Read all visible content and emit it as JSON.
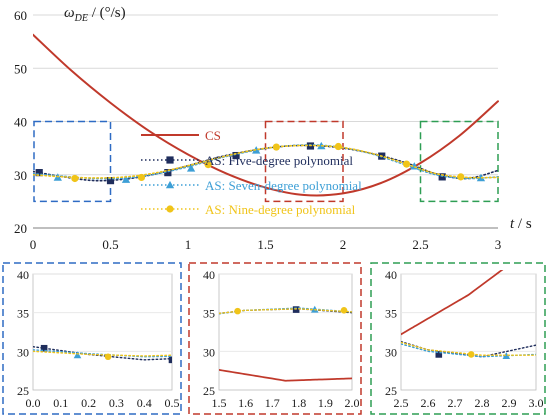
{
  "chart_data": {
    "type": "line",
    "main": {
      "ylabel": "ωDE / (°/s)",
      "ylabel_main": "ω",
      "ylabel_sub": "DE",
      "ylabel_unit": " / (°/s)",
      "xlabel": "t / s",
      "xlabel_var": "t",
      "xlabel_unit": " / s",
      "xlim": [
        0,
        3
      ],
      "ylim": [
        20,
        60
      ],
      "xticks": [
        "0",
        "0.5",
        "1",
        "1.5",
        "2",
        "2.5",
        "3"
      ],
      "yticks": [
        "20",
        "30",
        "40",
        "50",
        "60"
      ],
      "xtick_values": [
        0,
        0.5,
        1,
        1.5,
        2,
        2.5,
        3
      ],
      "ytick_values": [
        20,
        30,
        40,
        50,
        60
      ],
      "series": [
        {
          "name": "CS",
          "style": "solid",
          "color": "#c0392b",
          "x": [
            0,
            0.25,
            0.5,
            0.75,
            1.0,
            1.25,
            1.5,
            1.75,
            2.0,
            2.25,
            2.5,
            2.75,
            3.0
          ],
          "y": [
            56.3,
            49.5,
            43.5,
            38.2,
            33.8,
            30.2,
            27.6,
            26.2,
            26.5,
            28.5,
            32.2,
            37.3,
            43.8
          ]
        },
        {
          "name": "AS: Five-degree polynomial",
          "style": "dotted",
          "color": "#1f2d5c",
          "marker": "square",
          "x": [
            0,
            0.2,
            0.4,
            0.6,
            0.8,
            1.0,
            1.2,
            1.4,
            1.6,
            1.8,
            2.0,
            2.2,
            2.4,
            2.6,
            2.8,
            3.0
          ],
          "y": [
            30.6,
            29.6,
            28.9,
            29.2,
            30.2,
            31.7,
            33.3,
            34.5,
            35.3,
            35.5,
            35.0,
            33.9,
            32.3,
            30.2,
            29.3,
            30.8
          ],
          "mx": [
            0.04,
            0.5,
            0.87,
            1.31,
            1.79,
            2.25,
            2.64
          ],
          "my": [
            30.4,
            28.9,
            30.4,
            33.6,
            35.4,
            33.5,
            29.6
          ]
        },
        {
          "name": "AS: Seven-degree polynomial",
          "style": "dotted",
          "color": "#3d9fd6",
          "marker": "triangle",
          "x": [
            0,
            0.2,
            0.4,
            0.6,
            0.8,
            1.0,
            1.2,
            1.4,
            1.6,
            1.8,
            2.0,
            2.2,
            2.4,
            2.6,
            2.8,
            3.0
          ],
          "y": [
            30.2,
            29.7,
            29.3,
            29.4,
            30.2,
            31.5,
            33.1,
            34.4,
            35.3,
            35.6,
            35.1,
            33.8,
            31.9,
            30.0,
            29.3,
            29.6
          ],
          "mx": [
            0.16,
            0.6,
            1.02,
            1.44,
            1.86,
            2.46,
            2.89
          ],
          "my": [
            29.5,
            29.1,
            31.2,
            34.6,
            35.4,
            31.6,
            29.4
          ]
        },
        {
          "name": "AS: Nine-degree polynomial",
          "style": "dotted",
          "color": "#f0c419",
          "marker": "circle",
          "x": [
            0,
            0.2,
            0.4,
            0.6,
            0.8,
            1.0,
            1.2,
            1.4,
            1.6,
            1.8,
            2.0,
            2.2,
            2.4,
            2.6,
            2.8,
            3.0
          ],
          "y": [
            30.0,
            29.6,
            29.4,
            29.6,
            30.4,
            31.7,
            33.2,
            34.5,
            35.3,
            35.5,
            35.1,
            33.9,
            32.1,
            30.2,
            29.5,
            29.5
          ],
          "mx": [
            0.27,
            0.7,
            1.13,
            1.57,
            1.97,
            2.41,
            2.76
          ],
          "my": [
            29.3,
            29.5,
            31.9,
            35.2,
            35.3,
            32.0,
            29.6
          ]
        }
      ],
      "zoom_boxes": [
        {
          "color": "#2e6bc4",
          "xlim": [
            0,
            0.5
          ],
          "ylim": [
            25,
            40
          ]
        },
        {
          "color": "#c0392b",
          "xlim": [
            1.5,
            2.0
          ],
          "ylim": [
            25,
            40
          ]
        },
        {
          "color": "#2e9e54",
          "xlim": [
            2.5,
            3.0
          ],
          "ylim": [
            25,
            40
          ]
        }
      ]
    },
    "insets": [
      {
        "border_color": "#2e6bc4",
        "xlim": [
          0,
          0.5
        ],
        "ylim": [
          25,
          40
        ],
        "xticks": [
          "0.0",
          "0.1",
          "0.2",
          "0.3",
          "0.4",
          "0.5"
        ],
        "xtick_values": [
          0,
          0.1,
          0.2,
          0.3,
          0.4,
          0.5
        ],
        "yticks": [
          "25",
          "30",
          "35",
          "40"
        ],
        "ytick_values": [
          25,
          30,
          35,
          40
        ]
      },
      {
        "border_color": "#c0392b",
        "xlim": [
          1.5,
          2.0
        ],
        "ylim": [
          25,
          40
        ],
        "xticks": [
          "1.5",
          "1.6",
          "1.7",
          "1.8",
          "1.9",
          "2.0"
        ],
        "xtick_values": [
          1.5,
          1.6,
          1.7,
          1.8,
          1.9,
          2.0
        ],
        "yticks": [
          "25",
          "30",
          "35",
          "40"
        ],
        "ytick_values": [
          25,
          30,
          35,
          40
        ]
      },
      {
        "border_color": "#2e9e54",
        "xlim": [
          2.5,
          3.0
        ],
        "ylim": [
          25,
          40
        ],
        "xticks": [
          "2.5",
          "2.6",
          "2.7",
          "2.8",
          "2.9",
          "3.0"
        ],
        "xtick_values": [
          2.5,
          2.6,
          2.7,
          2.8,
          2.9,
          3.0
        ],
        "yticks": [
          "25",
          "30",
          "35",
          "40"
        ],
        "ytick_values": [
          25,
          30,
          35,
          40
        ]
      }
    ]
  }
}
